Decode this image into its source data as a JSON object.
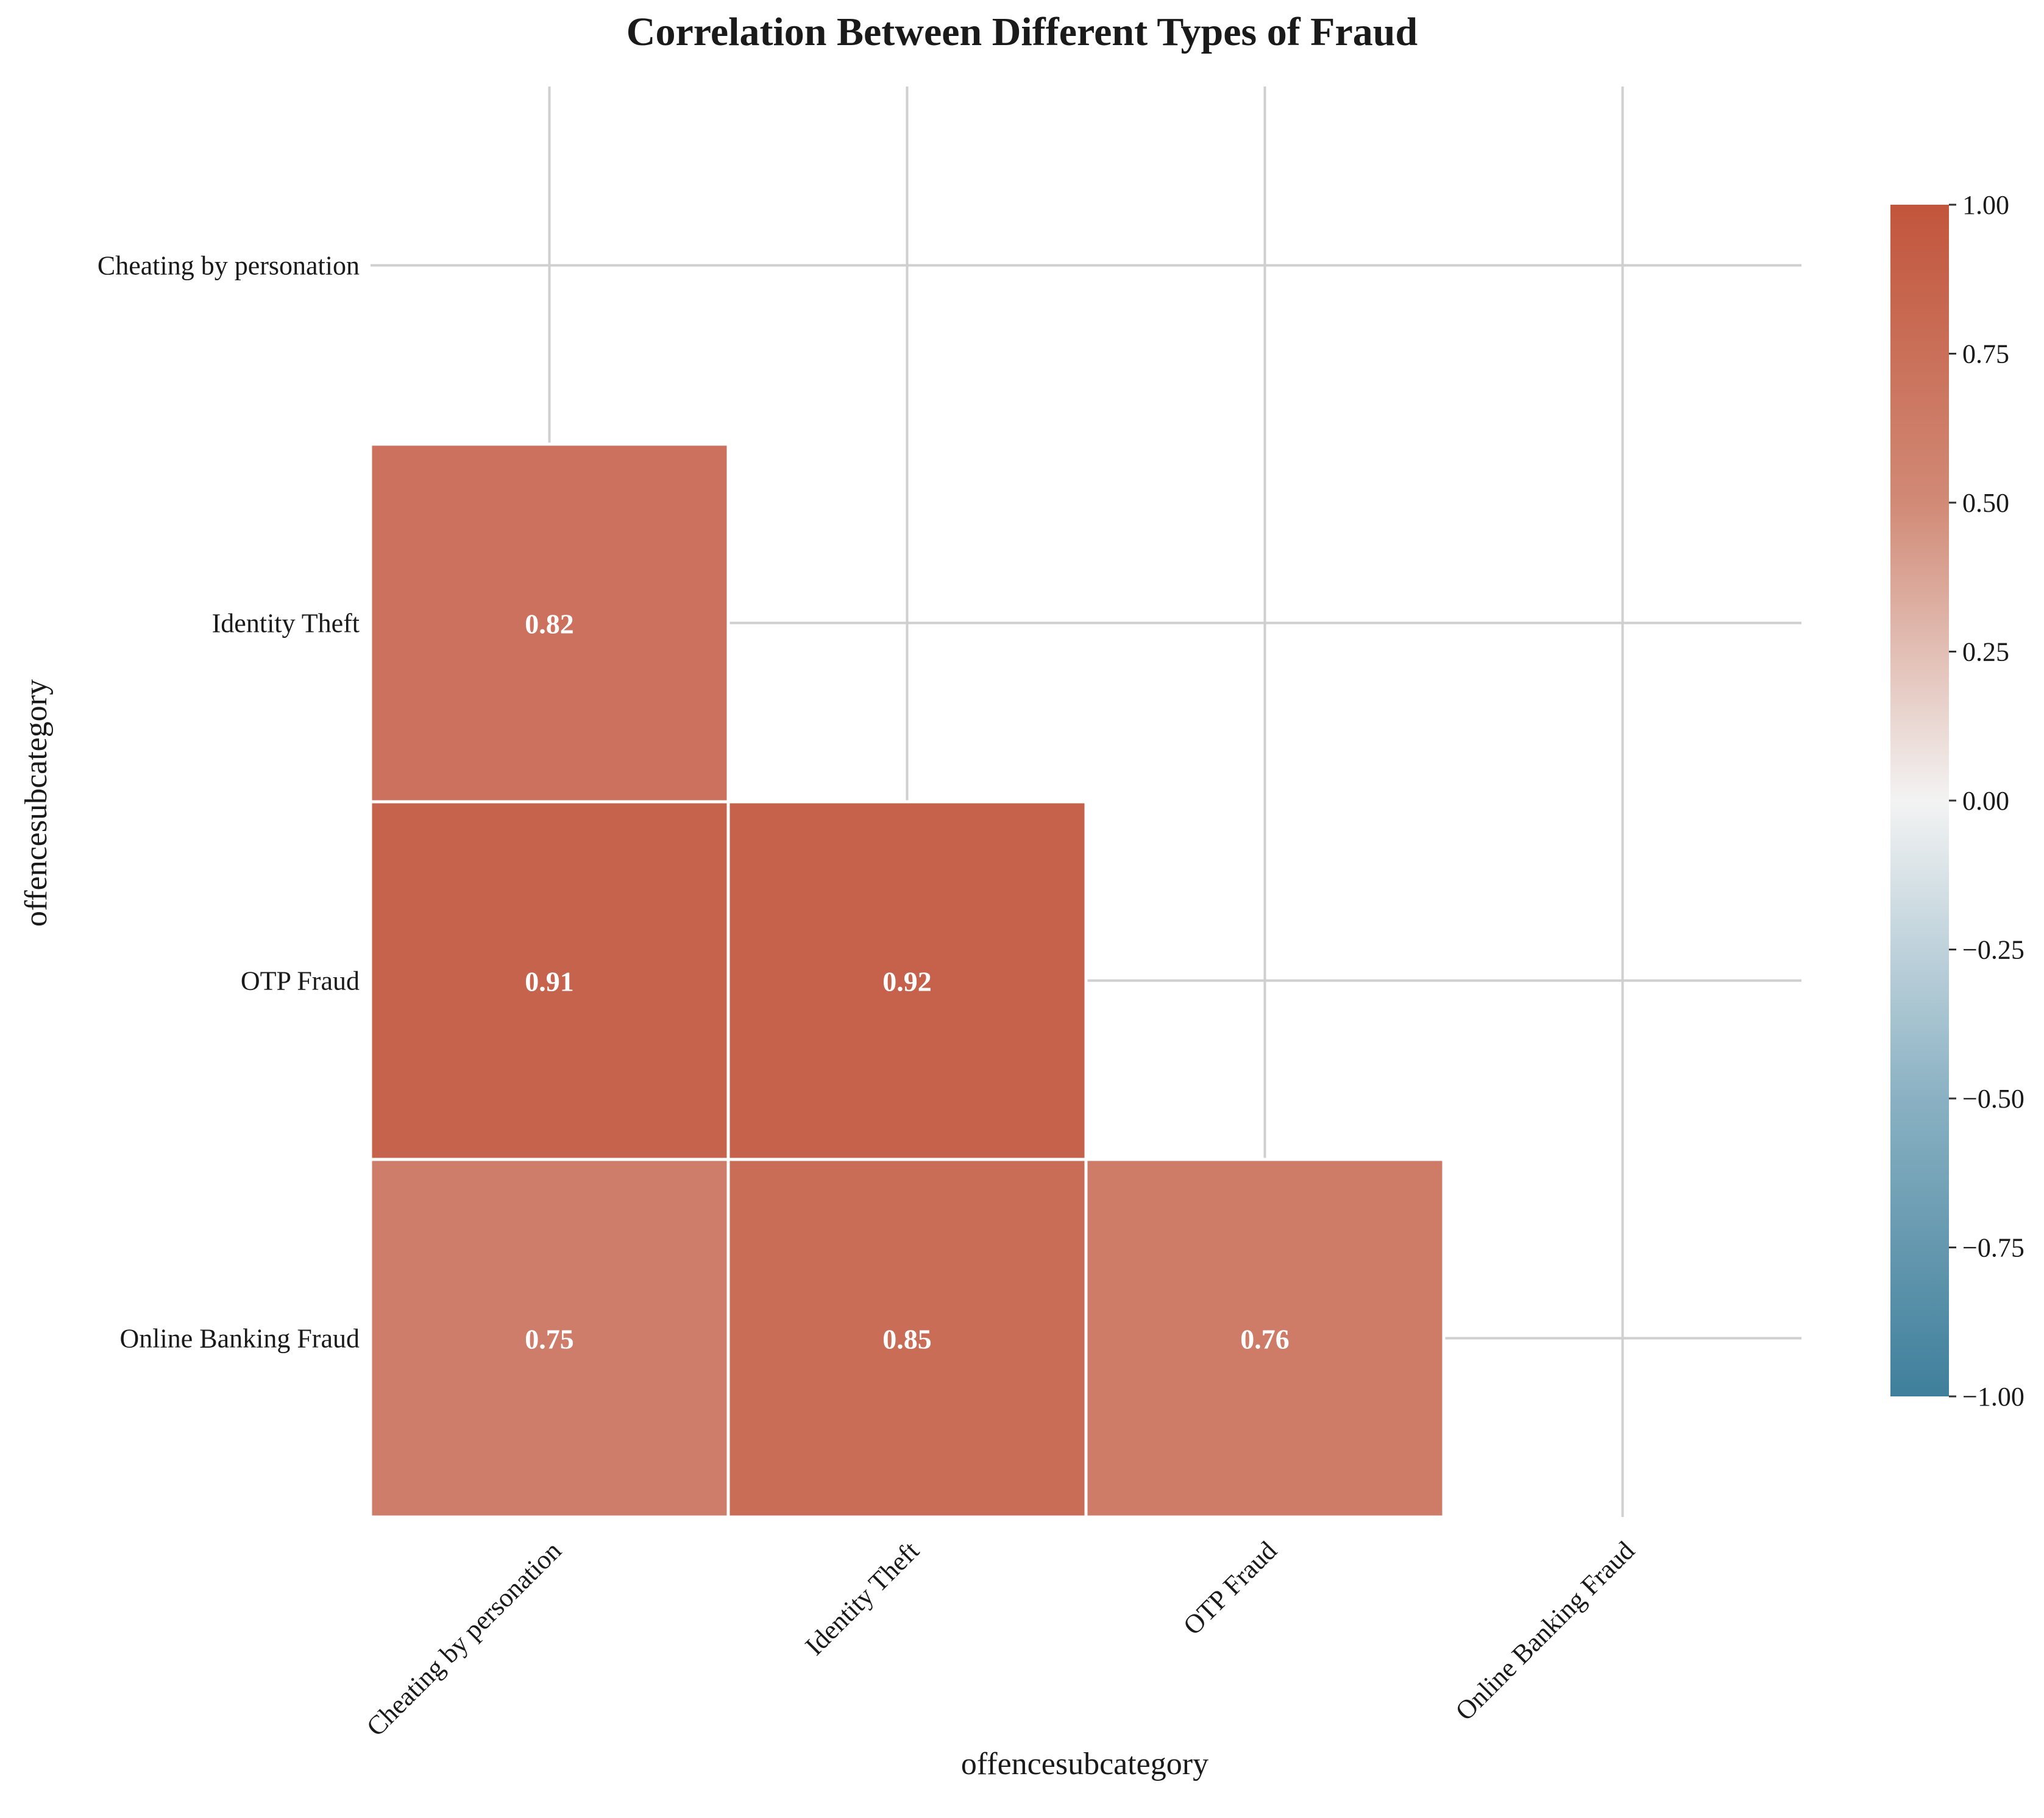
{
  "chart_data": {
    "type": "heatmap",
    "title": "Correlation Between Different Types of Fraud",
    "xlabel": "offencesubcategory",
    "ylabel": "offencesubcategory",
    "x_categories": [
      "Cheating by personation",
      "Identity Theft",
      "OTP Fraud",
      "Online Banking Fraud"
    ],
    "y_categories": [
      "Cheating by personation",
      "Identity Theft",
      "OTP Fraud",
      "Online Banking Fraud"
    ],
    "mask": "upper triangle including diagonal",
    "cells": [
      {
        "row": "Identity Theft",
        "col": "Cheating by personation",
        "value": 0.82,
        "label": "0.82"
      },
      {
        "row": "OTP Fraud",
        "col": "Cheating by personation",
        "value": 0.91,
        "label": "0.91"
      },
      {
        "row": "OTP Fraud",
        "col": "Identity Theft",
        "value": 0.92,
        "label": "0.92"
      },
      {
        "row": "Online Banking Fraud",
        "col": "Cheating by personation",
        "value": 0.75,
        "label": "0.75"
      },
      {
        "row": "Online Banking Fraud",
        "col": "Identity Theft",
        "value": 0.85,
        "label": "0.85"
      },
      {
        "row": "Online Banking Fraud",
        "col": "OTP Fraud",
        "value": 0.76,
        "label": "0.76"
      }
    ],
    "colorbar": {
      "range": [
        -1,
        1
      ],
      "ticks": [
        "1.00",
        "0.75",
        "0.50",
        "0.25",
        "0.00",
        "−0.25",
        "−0.50",
        "−0.75",
        "−1.00"
      ],
      "colors": {
        "negative": "#3f7f9b",
        "zero": "#f3f3f3",
        "positive": "#c2553c"
      }
    },
    "grid": true
  }
}
